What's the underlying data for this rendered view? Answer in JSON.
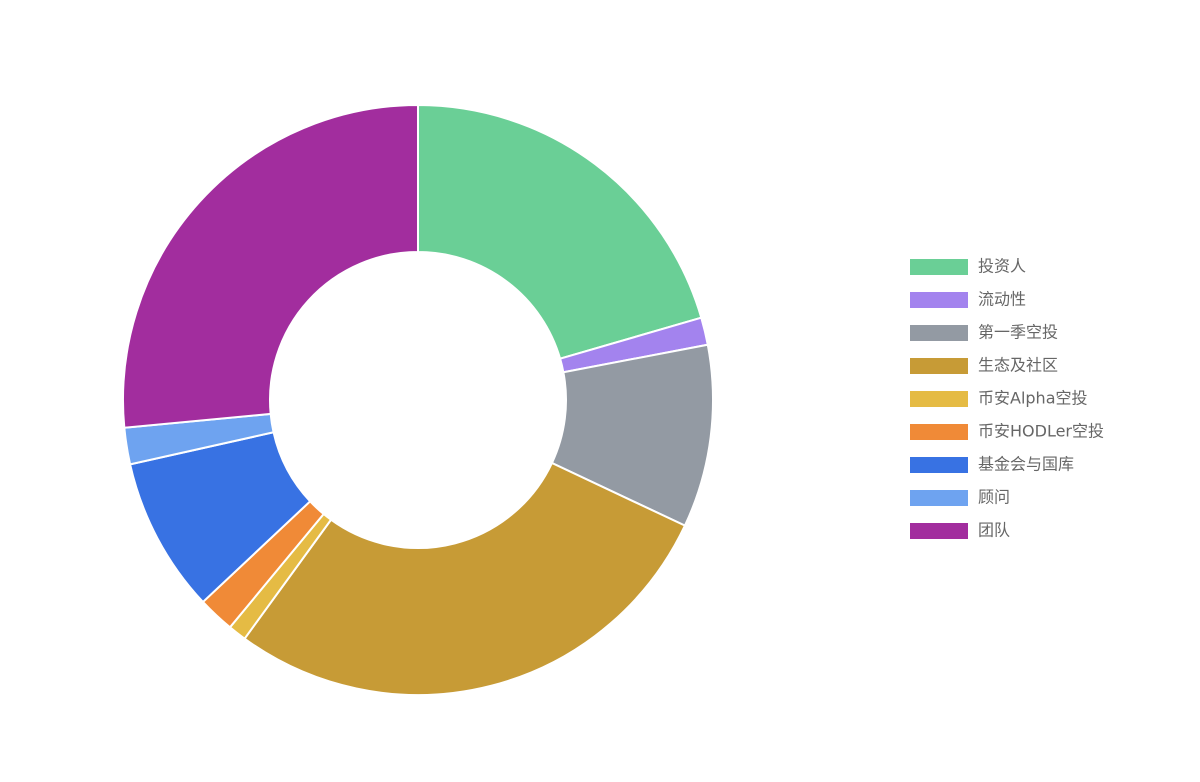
{
  "chart_data": {
    "type": "donut",
    "categories": [
      "投资人",
      "流动性",
      "第一季空投",
      "生态及社区",
      "币安Alpha空投",
      "币安HODLer空投",
      "基金会与国库",
      "顾问",
      "团队"
    ],
    "values": [
      20.5,
      1.5,
      10,
      28,
      1,
      2,
      8.5,
      2,
      26.5
    ],
    "colors": [
      "#6acf96",
      "#a383ee",
      "#939aa3",
      "#c79b36",
      "#e5bb44",
      "#f08a37",
      "#3872e3",
      "#6ea3f0",
      "#a22d9e"
    ],
    "legend": "right"
  }
}
